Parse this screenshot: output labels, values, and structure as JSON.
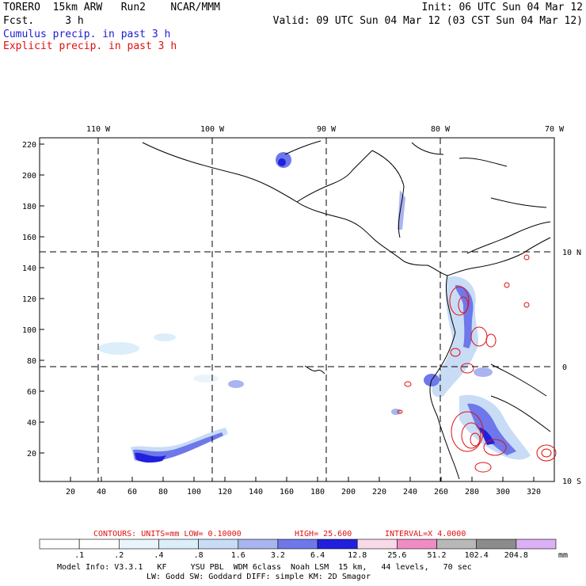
{
  "header": {
    "left_line1": "TORERO  15km ARW   Run2    NCAR/MMM",
    "left_line2": "Fcst.     3 h",
    "right_line1": "Init: 06 UTC Sun 04 Mar 12",
    "right_line2": "Valid: 09 UTC Sun 04 Mar 12 (03 CST Sun 04 Mar 12)",
    "legend_cumulus": "Cumulus precip. in past 3 h",
    "legend_explicit": "Explicit precip. in past 3 h"
  },
  "map": {
    "top_lon_labels": [
      "110 W",
      "100 W",
      "90 W",
      "80 W",
      "70 W"
    ],
    "right_lat_labels": [
      "10 N",
      "0",
      "10 S"
    ],
    "left_axis_ticks": [
      "220",
      "200",
      "180",
      "160",
      "140",
      "120",
      "100",
      "80",
      "60",
      "40",
      "20"
    ],
    "bottom_axis_ticks": [
      "20",
      "40",
      "60",
      "80",
      "100",
      "120",
      "140",
      "160",
      "180",
      "200",
      "220",
      "240",
      "260",
      "280",
      "300",
      "320"
    ]
  },
  "colorbar": {
    "contour_info": {
      "label": "CONTOURS:  UNITS=mm  LOW= 0.10000",
      "high": "HIGH=  25.600",
      "interval": "INTERVAL=X  4.0000"
    },
    "levels": [
      ".1",
      ".2",
      ".4",
      ".8",
      "1.6",
      "3.2",
      "6.4",
      "12.8",
      "25.6",
      "51.2",
      "102.4",
      "204.8"
    ],
    "unit": "mm",
    "colors": [
      "#ffffff",
      "#ffffff",
      "#eaf4fb",
      "#dbeefa",
      "#c8dcf6",
      "#a9b4f0",
      "#6e78ea",
      "#2020dc",
      "#f7d9e8",
      "#f08cc4",
      "#b8b8b8",
      "#8c8c8c",
      "#dcb0f4"
    ]
  },
  "footer": {
    "line1": "Model Info: V3.3.1   KF     YSU PBL  WDM 6class  Noah LSM  15 km,   44 levels,   70 sec",
    "line2": "LW: Godd SW: Goddard DIFF: simple KM: 2D Smagor"
  }
}
